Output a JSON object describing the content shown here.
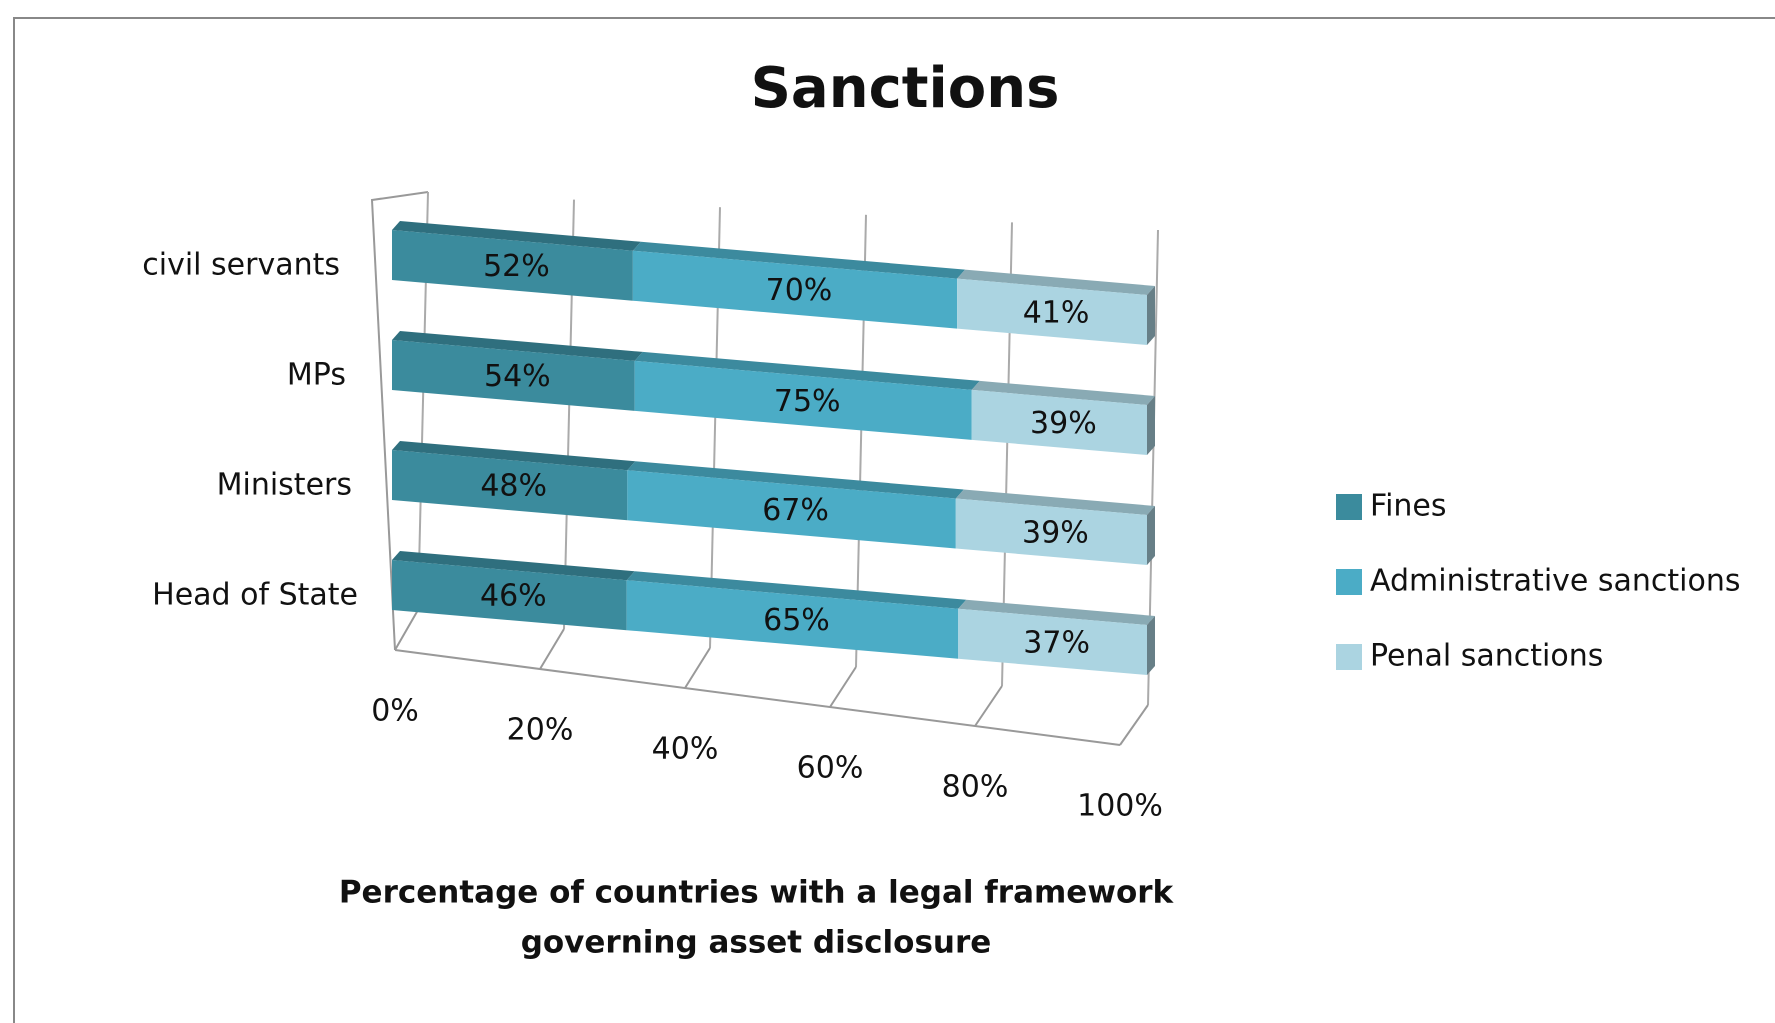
{
  "chart_data": {
    "type": "bar",
    "orientation": "horizontal",
    "stacking": "percent",
    "title": "Sanctions",
    "x_label": [
      "Percentage of countries with a legal framework",
      "governing asset disclosure"
    ],
    "categories": [
      "civil servants",
      "MPs",
      "Ministers",
      "Head of State"
    ],
    "series": [
      {
        "name": "Fines",
        "color": "#3b8b9d",
        "values": [
          52,
          54,
          48,
          46
        ],
        "value_labels": [
          "52%",
          "54%",
          "48%",
          "46%"
        ]
      },
      {
        "name": "Administrative sanctions",
        "color": "#4bacc6",
        "values": [
          70,
          75,
          67,
          65
        ],
        "value_labels": [
          "70%",
          "75%",
          "67%",
          "65%"
        ]
      },
      {
        "name": "Penal sanctions",
        "color": "#abd4e1",
        "values": [
          41,
          39,
          39,
          37
        ],
        "value_labels": [
          "41%",
          "39%",
          "39%",
          "37%"
        ]
      }
    ],
    "xlim": [
      0,
      100
    ],
    "xticks": [
      {
        "value": 0,
        "label": "0%"
      },
      {
        "value": 20,
        "label": "20%"
      },
      {
        "value": 40,
        "label": "40%"
      },
      {
        "value": 60,
        "label": "60%"
      },
      {
        "value": 80,
        "label": "80%"
      },
      {
        "value": 100,
        "label": "100%"
      }
    ],
    "grid": true,
    "legend": "right"
  }
}
